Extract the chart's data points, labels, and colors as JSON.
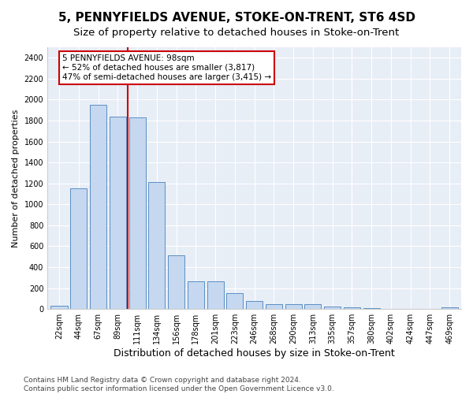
{
  "title": "5, PENNYFIELDS AVENUE, STOKE-ON-TRENT, ST6 4SD",
  "subtitle": "Size of property relative to detached houses in Stoke-on-Trent",
  "xlabel": "Distribution of detached houses by size in Stoke-on-Trent",
  "ylabel": "Number of detached properties",
  "bar_labels": [
    "22sqm",
    "44sqm",
    "67sqm",
    "89sqm",
    "111sqm",
    "134sqm",
    "156sqm",
    "178sqm",
    "201sqm",
    "223sqm",
    "246sqm",
    "268sqm",
    "290sqm",
    "313sqm",
    "335sqm",
    "357sqm",
    "380sqm",
    "402sqm",
    "424sqm",
    "447sqm",
    "469sqm"
  ],
  "bar_values": [
    30,
    1150,
    1950,
    1840,
    1830,
    1210,
    510,
    265,
    265,
    155,
    80,
    50,
    45,
    45,
    22,
    15,
    7,
    3,
    3,
    3,
    20
  ],
  "bar_color": "#c5d8f0",
  "bar_edge_color": "#5b8ec4",
  "vline_x": 3.5,
  "vline_color": "#cc0000",
  "annotation_text": "5 PENNYFIELDS AVENUE: 98sqm\n← 52% of detached houses are smaller (3,817)\n47% of semi-detached houses are larger (3,415) →",
  "annotation_box_color": "#ffffff",
  "annotation_box_edge": "#cc0000",
  "ylim": [
    0,
    2500
  ],
  "yticks": [
    0,
    200,
    400,
    600,
    800,
    1000,
    1200,
    1400,
    1600,
    1800,
    2000,
    2200,
    2400
  ],
  "axes_bg_color": "#e8eef6",
  "footer": "Contains HM Land Registry data © Crown copyright and database right 2024.\nContains public sector information licensed under the Open Government Licence v3.0.",
  "title_fontsize": 11,
  "subtitle_fontsize": 9.5,
  "xlabel_fontsize": 9,
  "ylabel_fontsize": 8,
  "tick_fontsize": 7,
  "annotation_fontsize": 7.5,
  "footer_fontsize": 6.5
}
